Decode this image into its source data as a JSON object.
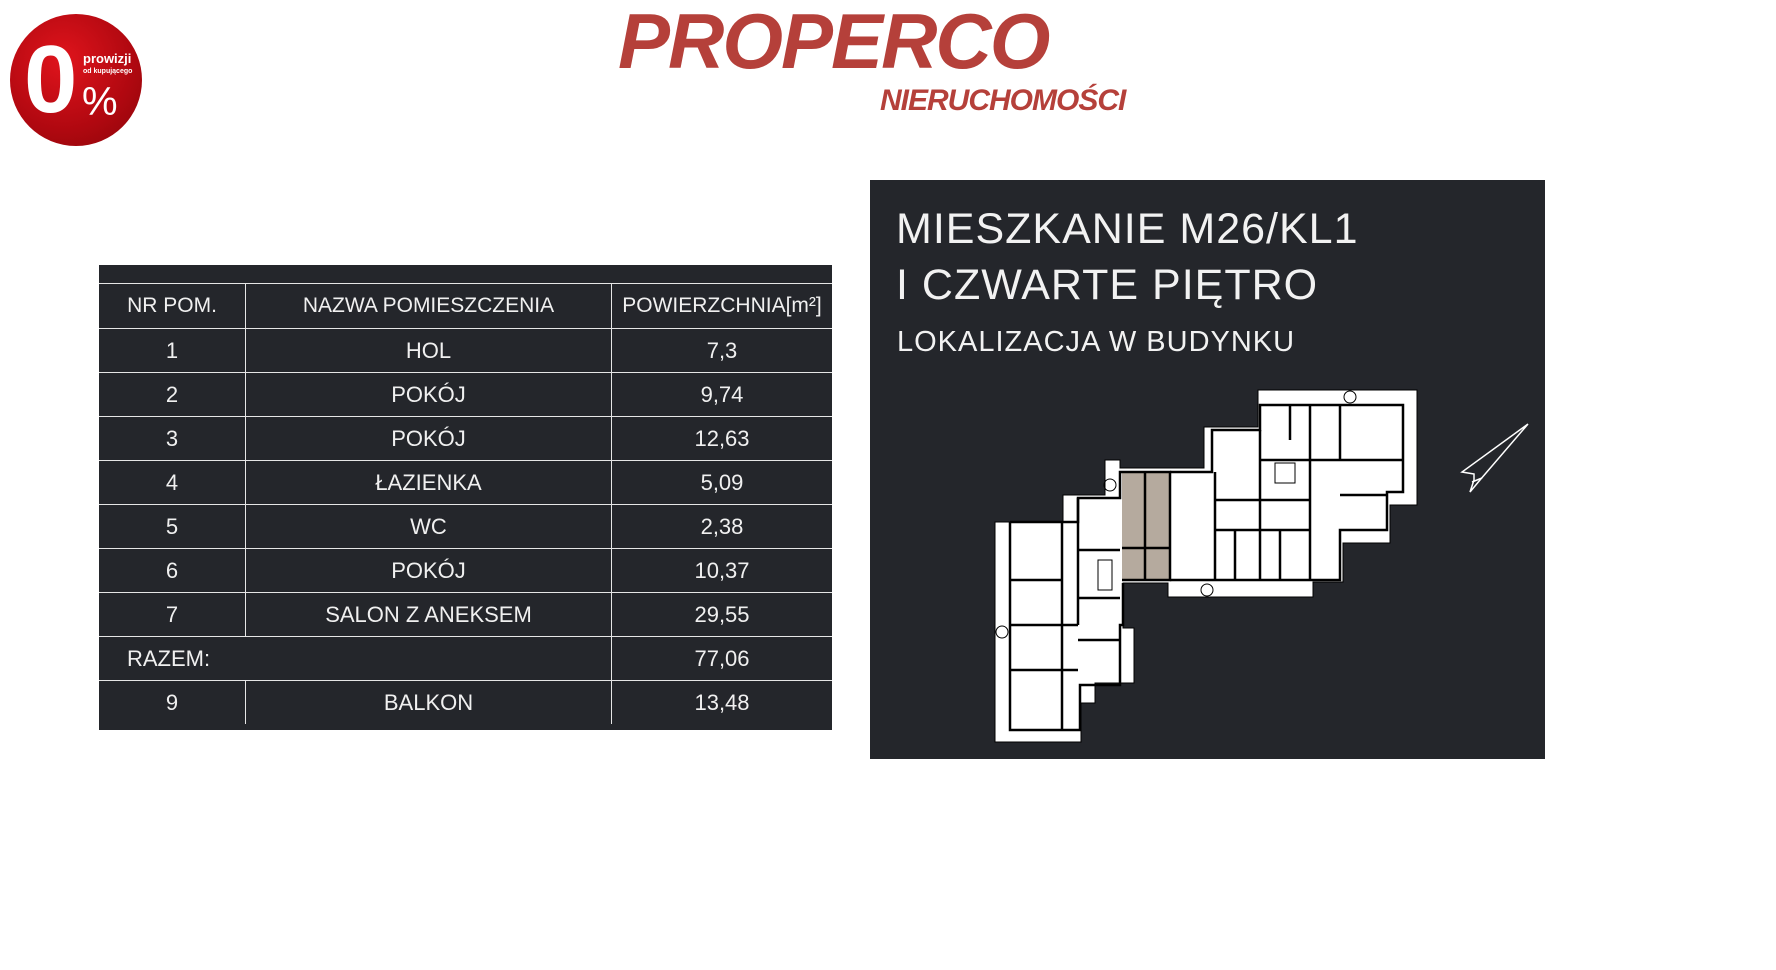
{
  "badge": {
    "big": "0",
    "percent": "%",
    "line1": "prowizji",
    "line2": "od kupującego",
    "color": "#c00a12"
  },
  "brand": {
    "name": "PROPERCO",
    "subtitle": "NIERUCHOMOŚCI",
    "color": "#b5403a"
  },
  "table": {
    "headers": [
      "NR POM.",
      "NAZWA POMIESZCZENIA",
      "POWIERZCHNIA[m²]"
    ],
    "rows": [
      {
        "nr": "1",
        "name": "HOL",
        "area": "7,3"
      },
      {
        "nr": "2",
        "name": "POKÓJ",
        "area": "9,74"
      },
      {
        "nr": "3",
        "name": "POKÓJ",
        "area": "12,63"
      },
      {
        "nr": "4",
        "name": "ŁAZIENKA",
        "area": "5,09"
      },
      {
        "nr": "5",
        "name": "WC",
        "area": "2,38"
      },
      {
        "nr": "6",
        "name": "POKÓJ",
        "area": "10,37"
      },
      {
        "nr": "7",
        "name": "SALON Z ANEKSEM",
        "area": "29,55"
      }
    ],
    "total": {
      "label": "RAZEM:",
      "area": "77,06"
    },
    "extra": {
      "nr": "9",
      "name": "BALKON",
      "area": "13,48"
    }
  },
  "panel": {
    "title_line1": "MIESZKANIE M26/KL1",
    "title_line2": "I CZWARTE PIĘTRO",
    "subtitle": "LOKALIZACJA W BUDYNKU",
    "background": "#24262b",
    "highlight_color": "#b5aa9e",
    "icons": [
      "floor-plan",
      "north-arrow-icon"
    ]
  }
}
